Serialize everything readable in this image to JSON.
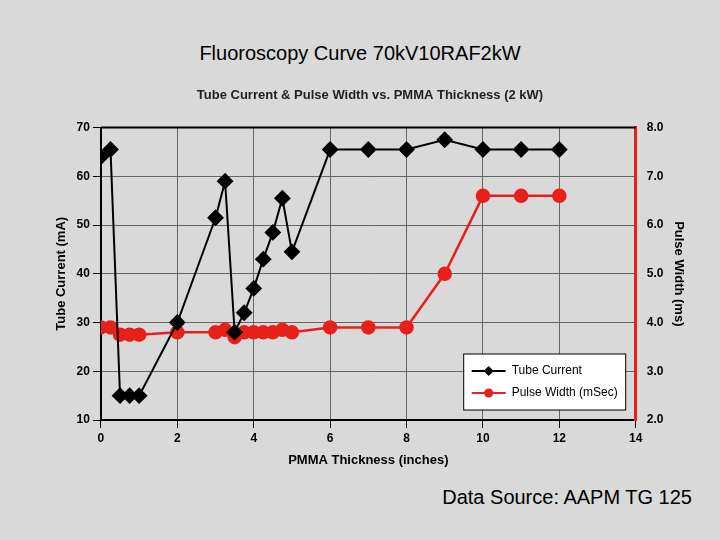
{
  "slide_title": "Fluoroscopy Curve 70kV10RAF2kW",
  "source": "Data Source: AAPM TG 125",
  "chart_data": {
    "type": "line",
    "title": "Tube Current & Pulse Width vs. PMMA Thickness (2 kW)",
    "x_label": "PMMA Thickness (inches)",
    "y_label": "Tube Current (mA)",
    "y2_label": "Pulse Width (ms)",
    "x": [
      0,
      0.25,
      0.5,
      0.75,
      1,
      2,
      3,
      3.25,
      3.5,
      3.75,
      4,
      4.25,
      4.5,
      4.75,
      5,
      6,
      7,
      8,
      9,
      10,
      11,
      12
    ],
    "series": [
      {
        "name": "Tube Current",
        "color": "#000000",
        "marker": "diamond",
        "line_style": "solid",
        "values": [
          64,
          65.5,
          15,
          15,
          15,
          30,
          51.5,
          59,
          28,
          32,
          37,
          43,
          48.5,
          55.5,
          44.5,
          65.5,
          65.5,
          65.5,
          67.5,
          65.5,
          65.5,
          65.5
        ]
      },
      {
        "name": "Pulse Width (mSec)",
        "color": "#e8201a",
        "marker": "circle",
        "line_style": "solid",
        "axis": "y2",
        "values": [
          3.9,
          3.9,
          3.75,
          3.75,
          3.75,
          3.8,
          3.8,
          3.85,
          3.7,
          3.8,
          3.8,
          3.8,
          3.8,
          3.85,
          3.8,
          3.9,
          3.9,
          3.9,
          5.0,
          6.6,
          6.6,
          6.6
        ]
      }
    ],
    "xlim": [
      0,
      14
    ],
    "xticks": [
      0,
      2,
      4,
      6,
      8,
      10,
      12,
      14
    ],
    "ylim": [
      10,
      70
    ],
    "yticks": [
      10,
      20,
      30,
      40,
      50,
      60,
      70
    ],
    "y2lim": [
      2,
      8
    ],
    "y2ticks": [
      {
        "value": 2,
        "label": "2.0"
      },
      {
        "value": 3,
        "label": "3.0"
      },
      {
        "value": 4,
        "label": "4.0"
      },
      {
        "value": 5,
        "label": "5.0"
      },
      {
        "value": 6,
        "label": "6.0"
      },
      {
        "value": 7,
        "label": "7.0"
      },
      {
        "value": 8,
        "label": "8.0"
      }
    ],
    "grid": true,
    "legend": "lower right"
  }
}
